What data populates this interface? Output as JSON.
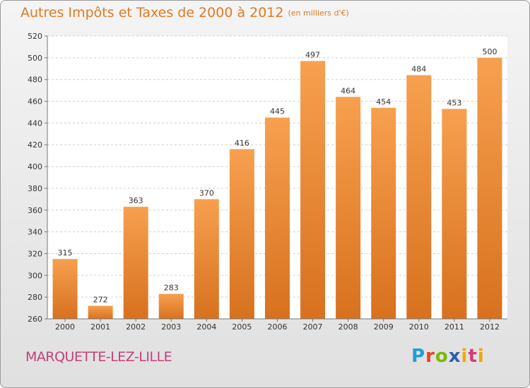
{
  "title": {
    "main": "Autres Impôts et Taxes de 2000 à 2012",
    "sub": "(en milliers d'€)"
  },
  "location": "MARQUETTE-LEZ-LILLE",
  "brand": {
    "letters": [
      "P",
      "r",
      "o",
      "x",
      "i",
      "t",
      "i"
    ]
  },
  "chart_data": {
    "type": "bar",
    "categories": [
      "2000",
      "2001",
      "2002",
      "2003",
      "2004",
      "2005",
      "2006",
      "2007",
      "2008",
      "2009",
      "2010",
      "2011",
      "2012"
    ],
    "values": [
      315,
      272,
      363,
      283,
      370,
      416,
      445,
      497,
      464,
      454,
      484,
      453,
      500
    ],
    "title": "Autres Impôts et Taxes de 2000 à 2012",
    "subtitle": "(en milliers d'€)",
    "ylim": [
      260,
      520
    ],
    "yticks": [
      260,
      280,
      300,
      320,
      340,
      360,
      380,
      400,
      420,
      440,
      460,
      480,
      500,
      520
    ],
    "grid": true,
    "colors": {
      "bar_light": "#f7a04f",
      "bar_dark": "#d7711e"
    }
  }
}
